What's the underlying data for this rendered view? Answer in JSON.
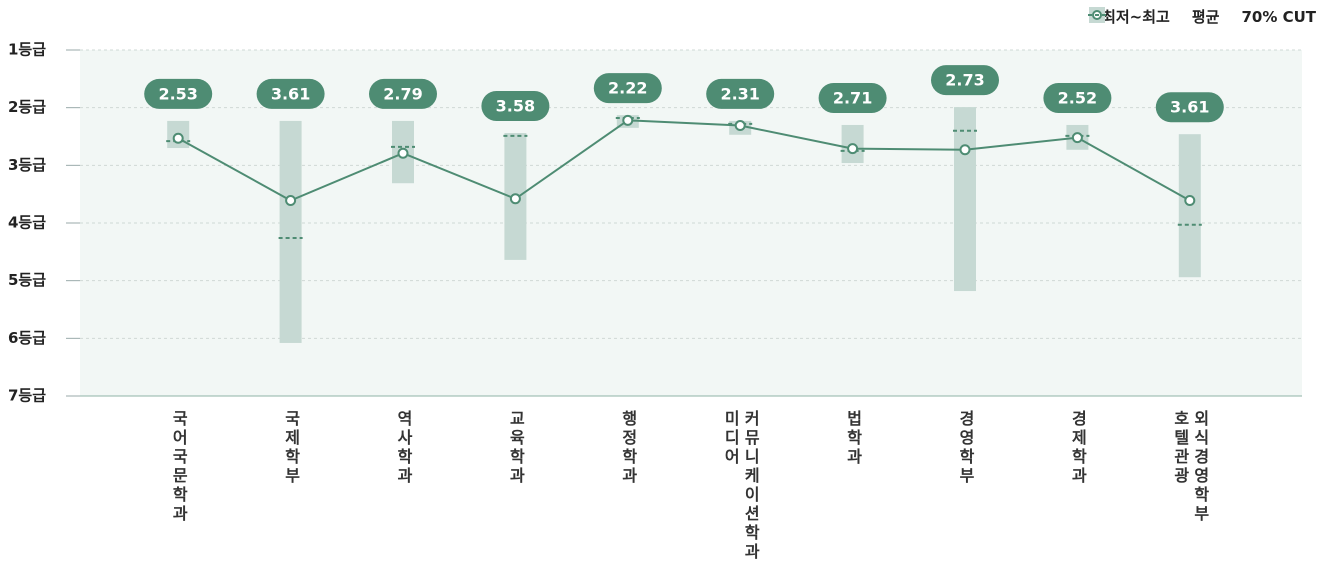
{
  "chart_data": {
    "type": "range_line",
    "categories": [
      "국어국문학과",
      "국제학부",
      "역사학과",
      "교육학과",
      "행정학과",
      "미디어 커뮤니케이션학과",
      "법학과",
      "경영학부",
      "경제학과",
      "호텔관광 외식경영학부"
    ],
    "series": [
      {
        "name": "최저~최고",
        "color": "#c6d9d3",
        "low": [
          2.23,
          2.23,
          2.23,
          2.44,
          2.13,
          2.23,
          2.3,
          1.99,
          2.3,
          2.46
        ],
        "high": [
          2.7,
          6.08,
          3.31,
          4.64,
          2.35,
          2.47,
          2.96,
          5.18,
          2.73,
          4.94
        ]
      },
      {
        "name": "평균",
        "color": "#4e8c73",
        "values": [
          2.53,
          3.61,
          2.79,
          3.58,
          2.22,
          2.31,
          2.71,
          2.73,
          2.52,
          3.61
        ]
      },
      {
        "name": "70% CUT",
        "color": "#4e8c73",
        "values": [
          2.58,
          4.26,
          2.68,
          2.49,
          2.18,
          2.28,
          2.75,
          2.4,
          2.49,
          4.03
        ]
      }
    ],
    "ylim": [
      1,
      7
    ],
    "y_reversed": true,
    "yticks": [
      {
        "value": 1,
        "label": "1등급"
      },
      {
        "value": 2,
        "label": "2등급"
      },
      {
        "value": 3,
        "label": "3등급"
      },
      {
        "value": 4,
        "label": "4등급"
      },
      {
        "value": 5,
        "label": "5등급"
      },
      {
        "value": 6,
        "label": "6등급"
      },
      {
        "value": 7,
        "label": "7등급"
      }
    ],
    "grid": true,
    "legend": "top-right"
  }
}
